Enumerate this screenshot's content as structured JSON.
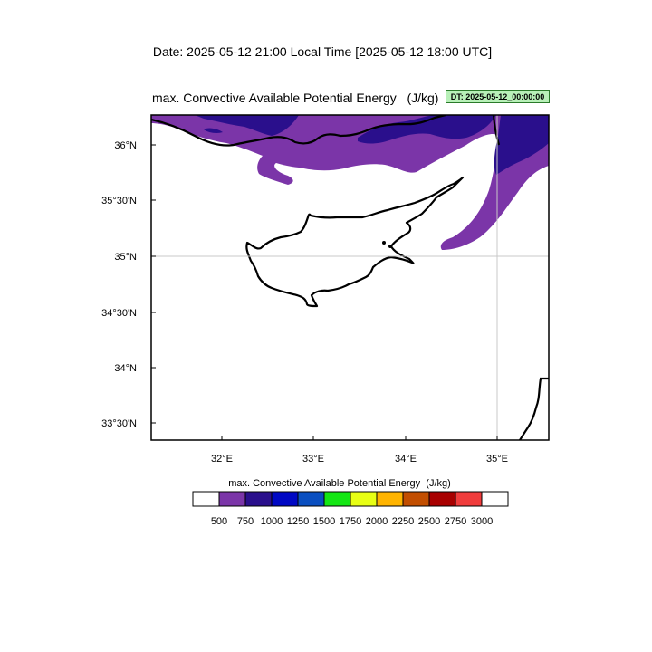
{
  "header": {
    "date_line": "Date: 2025-05-12  21:00 Local Time [2025-05-12  18:00 UTC]",
    "plot_title": "max. Convective Available Potential Energy   (J/kg)",
    "dt_badge": "DT: 2025-05-12_00:00:00"
  },
  "map": {
    "lat_labels": [
      "36°N",
      "35°30'N",
      "35°N",
      "34°30'N",
      "34°N",
      "33°30'N"
    ],
    "lon_labels": [
      "32°E",
      "33°E",
      "34°E",
      "35°E"
    ],
    "field_colors": {
      "level_750": "#7b35a8",
      "level_1000": "#2a0f8c"
    }
  },
  "colorbar": {
    "title": "max. Convective Available Potential Energy  (J/kg)",
    "colors": [
      "#ffffff",
      "#7b35a8",
      "#2a0f8c",
      "#0008c4",
      "#0a4fc0",
      "#14e614",
      "#e8ff14",
      "#ffb400",
      "#c24e00",
      "#a80000",
      "#f03c3c",
      "#ffffff"
    ],
    "labels": [
      "500",
      "750",
      "1000",
      "1250",
      "1500",
      "1750",
      "2000",
      "2250",
      "2500",
      "2750",
      "3000"
    ]
  }
}
